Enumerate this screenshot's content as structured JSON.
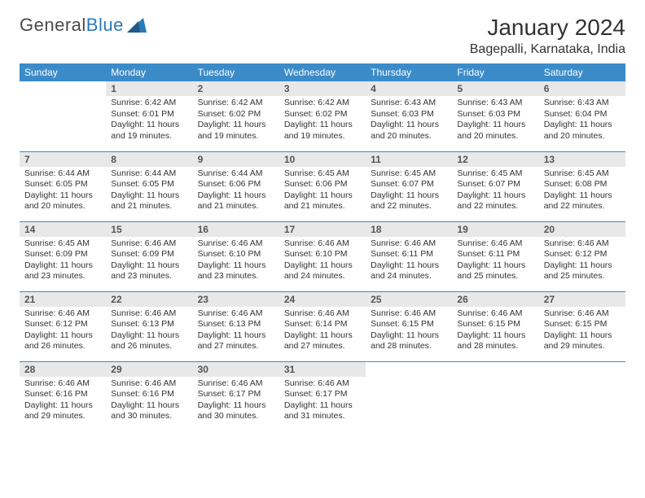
{
  "brand": {
    "part1": "General",
    "part2": "Blue"
  },
  "title": "January 2024",
  "location": "Bagepalli, Karnataka, India",
  "colors": {
    "header_bg": "#3b8bc9",
    "header_text": "#ffffff",
    "daynum_bg": "#e8e8e8",
    "row_border": "#3b8bc9",
    "body_bg": "#ffffff",
    "text": "#333333",
    "logo_gray": "#4a4a4a",
    "logo_blue": "#2a7ab8"
  },
  "fonts": {
    "title_pt": 28,
    "location_pt": 16,
    "weekday_pt": 12,
    "daynum_pt": 12,
    "body_pt": 10.5
  },
  "weekdays": [
    "Sunday",
    "Monday",
    "Tuesday",
    "Wednesday",
    "Thursday",
    "Friday",
    "Saturday"
  ],
  "weeks": [
    [
      {
        "empty": true
      },
      {
        "n": "1",
        "sr": "Sunrise: 6:42 AM",
        "ss": "Sunset: 6:01 PM",
        "d1": "Daylight: 11 hours",
        "d2": "and 19 minutes."
      },
      {
        "n": "2",
        "sr": "Sunrise: 6:42 AM",
        "ss": "Sunset: 6:02 PM",
        "d1": "Daylight: 11 hours",
        "d2": "and 19 minutes."
      },
      {
        "n": "3",
        "sr": "Sunrise: 6:42 AM",
        "ss": "Sunset: 6:02 PM",
        "d1": "Daylight: 11 hours",
        "d2": "and 19 minutes."
      },
      {
        "n": "4",
        "sr": "Sunrise: 6:43 AM",
        "ss": "Sunset: 6:03 PM",
        "d1": "Daylight: 11 hours",
        "d2": "and 20 minutes."
      },
      {
        "n": "5",
        "sr": "Sunrise: 6:43 AM",
        "ss": "Sunset: 6:03 PM",
        "d1": "Daylight: 11 hours",
        "d2": "and 20 minutes."
      },
      {
        "n": "6",
        "sr": "Sunrise: 6:43 AM",
        "ss": "Sunset: 6:04 PM",
        "d1": "Daylight: 11 hours",
        "d2": "and 20 minutes."
      }
    ],
    [
      {
        "n": "7",
        "sr": "Sunrise: 6:44 AM",
        "ss": "Sunset: 6:05 PM",
        "d1": "Daylight: 11 hours",
        "d2": "and 20 minutes."
      },
      {
        "n": "8",
        "sr": "Sunrise: 6:44 AM",
        "ss": "Sunset: 6:05 PM",
        "d1": "Daylight: 11 hours",
        "d2": "and 21 minutes."
      },
      {
        "n": "9",
        "sr": "Sunrise: 6:44 AM",
        "ss": "Sunset: 6:06 PM",
        "d1": "Daylight: 11 hours",
        "d2": "and 21 minutes."
      },
      {
        "n": "10",
        "sr": "Sunrise: 6:45 AM",
        "ss": "Sunset: 6:06 PM",
        "d1": "Daylight: 11 hours",
        "d2": "and 21 minutes."
      },
      {
        "n": "11",
        "sr": "Sunrise: 6:45 AM",
        "ss": "Sunset: 6:07 PM",
        "d1": "Daylight: 11 hours",
        "d2": "and 22 minutes."
      },
      {
        "n": "12",
        "sr": "Sunrise: 6:45 AM",
        "ss": "Sunset: 6:07 PM",
        "d1": "Daylight: 11 hours",
        "d2": "and 22 minutes."
      },
      {
        "n": "13",
        "sr": "Sunrise: 6:45 AM",
        "ss": "Sunset: 6:08 PM",
        "d1": "Daylight: 11 hours",
        "d2": "and 22 minutes."
      }
    ],
    [
      {
        "n": "14",
        "sr": "Sunrise: 6:45 AM",
        "ss": "Sunset: 6:09 PM",
        "d1": "Daylight: 11 hours",
        "d2": "and 23 minutes."
      },
      {
        "n": "15",
        "sr": "Sunrise: 6:46 AM",
        "ss": "Sunset: 6:09 PM",
        "d1": "Daylight: 11 hours",
        "d2": "and 23 minutes."
      },
      {
        "n": "16",
        "sr": "Sunrise: 6:46 AM",
        "ss": "Sunset: 6:10 PM",
        "d1": "Daylight: 11 hours",
        "d2": "and 23 minutes."
      },
      {
        "n": "17",
        "sr": "Sunrise: 6:46 AM",
        "ss": "Sunset: 6:10 PM",
        "d1": "Daylight: 11 hours",
        "d2": "and 24 minutes."
      },
      {
        "n": "18",
        "sr": "Sunrise: 6:46 AM",
        "ss": "Sunset: 6:11 PM",
        "d1": "Daylight: 11 hours",
        "d2": "and 24 minutes."
      },
      {
        "n": "19",
        "sr": "Sunrise: 6:46 AM",
        "ss": "Sunset: 6:11 PM",
        "d1": "Daylight: 11 hours",
        "d2": "and 25 minutes."
      },
      {
        "n": "20",
        "sr": "Sunrise: 6:46 AM",
        "ss": "Sunset: 6:12 PM",
        "d1": "Daylight: 11 hours",
        "d2": "and 25 minutes."
      }
    ],
    [
      {
        "n": "21",
        "sr": "Sunrise: 6:46 AM",
        "ss": "Sunset: 6:12 PM",
        "d1": "Daylight: 11 hours",
        "d2": "and 26 minutes."
      },
      {
        "n": "22",
        "sr": "Sunrise: 6:46 AM",
        "ss": "Sunset: 6:13 PM",
        "d1": "Daylight: 11 hours",
        "d2": "and 26 minutes."
      },
      {
        "n": "23",
        "sr": "Sunrise: 6:46 AM",
        "ss": "Sunset: 6:13 PM",
        "d1": "Daylight: 11 hours",
        "d2": "and 27 minutes."
      },
      {
        "n": "24",
        "sr": "Sunrise: 6:46 AM",
        "ss": "Sunset: 6:14 PM",
        "d1": "Daylight: 11 hours",
        "d2": "and 27 minutes."
      },
      {
        "n": "25",
        "sr": "Sunrise: 6:46 AM",
        "ss": "Sunset: 6:15 PM",
        "d1": "Daylight: 11 hours",
        "d2": "and 28 minutes."
      },
      {
        "n": "26",
        "sr": "Sunrise: 6:46 AM",
        "ss": "Sunset: 6:15 PM",
        "d1": "Daylight: 11 hours",
        "d2": "and 28 minutes."
      },
      {
        "n": "27",
        "sr": "Sunrise: 6:46 AM",
        "ss": "Sunset: 6:15 PM",
        "d1": "Daylight: 11 hours",
        "d2": "and 29 minutes."
      }
    ],
    [
      {
        "n": "28",
        "sr": "Sunrise: 6:46 AM",
        "ss": "Sunset: 6:16 PM",
        "d1": "Daylight: 11 hours",
        "d2": "and 29 minutes."
      },
      {
        "n": "29",
        "sr": "Sunrise: 6:46 AM",
        "ss": "Sunset: 6:16 PM",
        "d1": "Daylight: 11 hours",
        "d2": "and 30 minutes."
      },
      {
        "n": "30",
        "sr": "Sunrise: 6:46 AM",
        "ss": "Sunset: 6:17 PM",
        "d1": "Daylight: 11 hours",
        "d2": "and 30 minutes."
      },
      {
        "n": "31",
        "sr": "Sunrise: 6:46 AM",
        "ss": "Sunset: 6:17 PM",
        "d1": "Daylight: 11 hours",
        "d2": "and 31 minutes."
      },
      {
        "empty": true
      },
      {
        "empty": true
      },
      {
        "empty": true
      }
    ]
  ]
}
